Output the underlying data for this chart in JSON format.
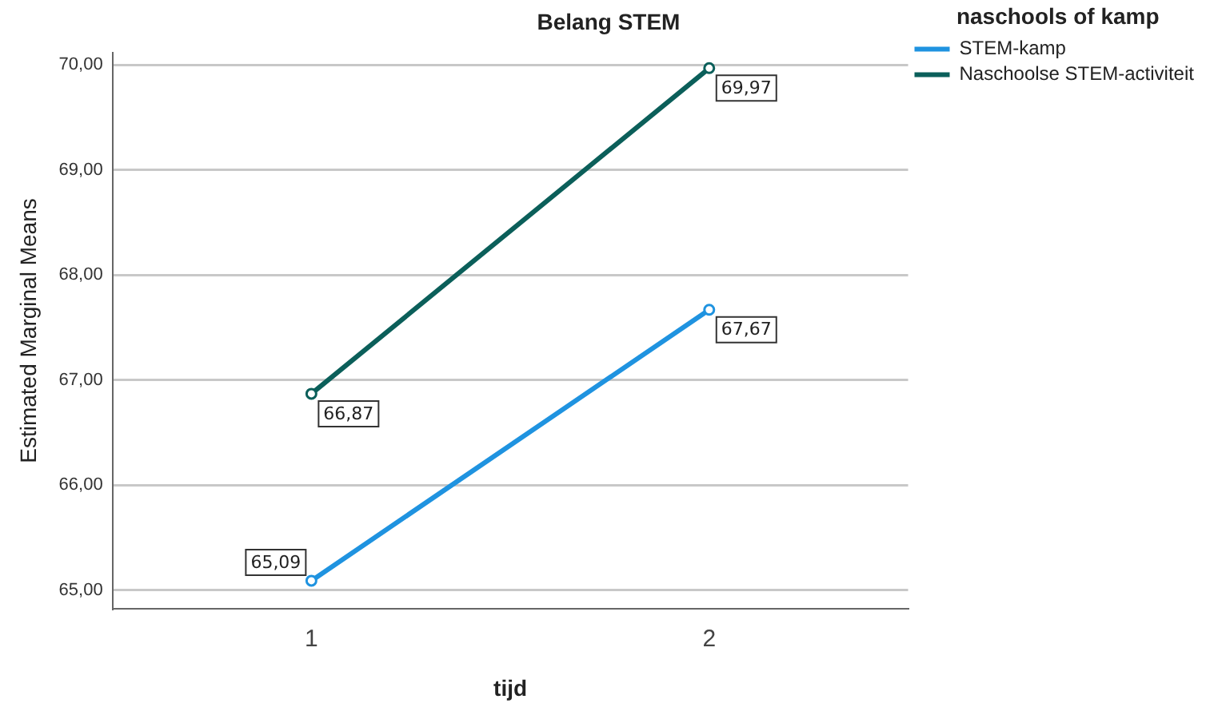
{
  "chart_data": {
    "type": "line",
    "title": "Belang STEM",
    "xlabel": "tijd",
    "ylabel": "Estimated Marginal Means",
    "legend_title": "naschools of kamp",
    "categories": [
      "1",
      "2"
    ],
    "series": [
      {
        "name": "STEM-kamp",
        "color": "#1f93e0",
        "values": [
          65.09,
          67.67
        ],
        "value_labels": [
          "65,09",
          "67,67"
        ]
      },
      {
        "name": "Naschoolse STEM-activiteit",
        "color": "#0b5f5a",
        "values": [
          66.87,
          69.97
        ],
        "value_labels": [
          "66,87",
          "69,97"
        ]
      }
    ],
    "ylim": [
      64.82,
      70.12
    ],
    "yticks": [
      {
        "value": 65,
        "label": "65,00"
      },
      {
        "value": 66,
        "label": "66,00"
      },
      {
        "value": 67,
        "label": "67,00"
      },
      {
        "value": 68,
        "label": "68,00"
      },
      {
        "value": 69,
        "label": "69,00"
      },
      {
        "value": 70,
        "label": "70,00"
      }
    ],
    "grid": "y",
    "legend": "top right",
    "marker": "circle",
    "line_style": "solid"
  }
}
